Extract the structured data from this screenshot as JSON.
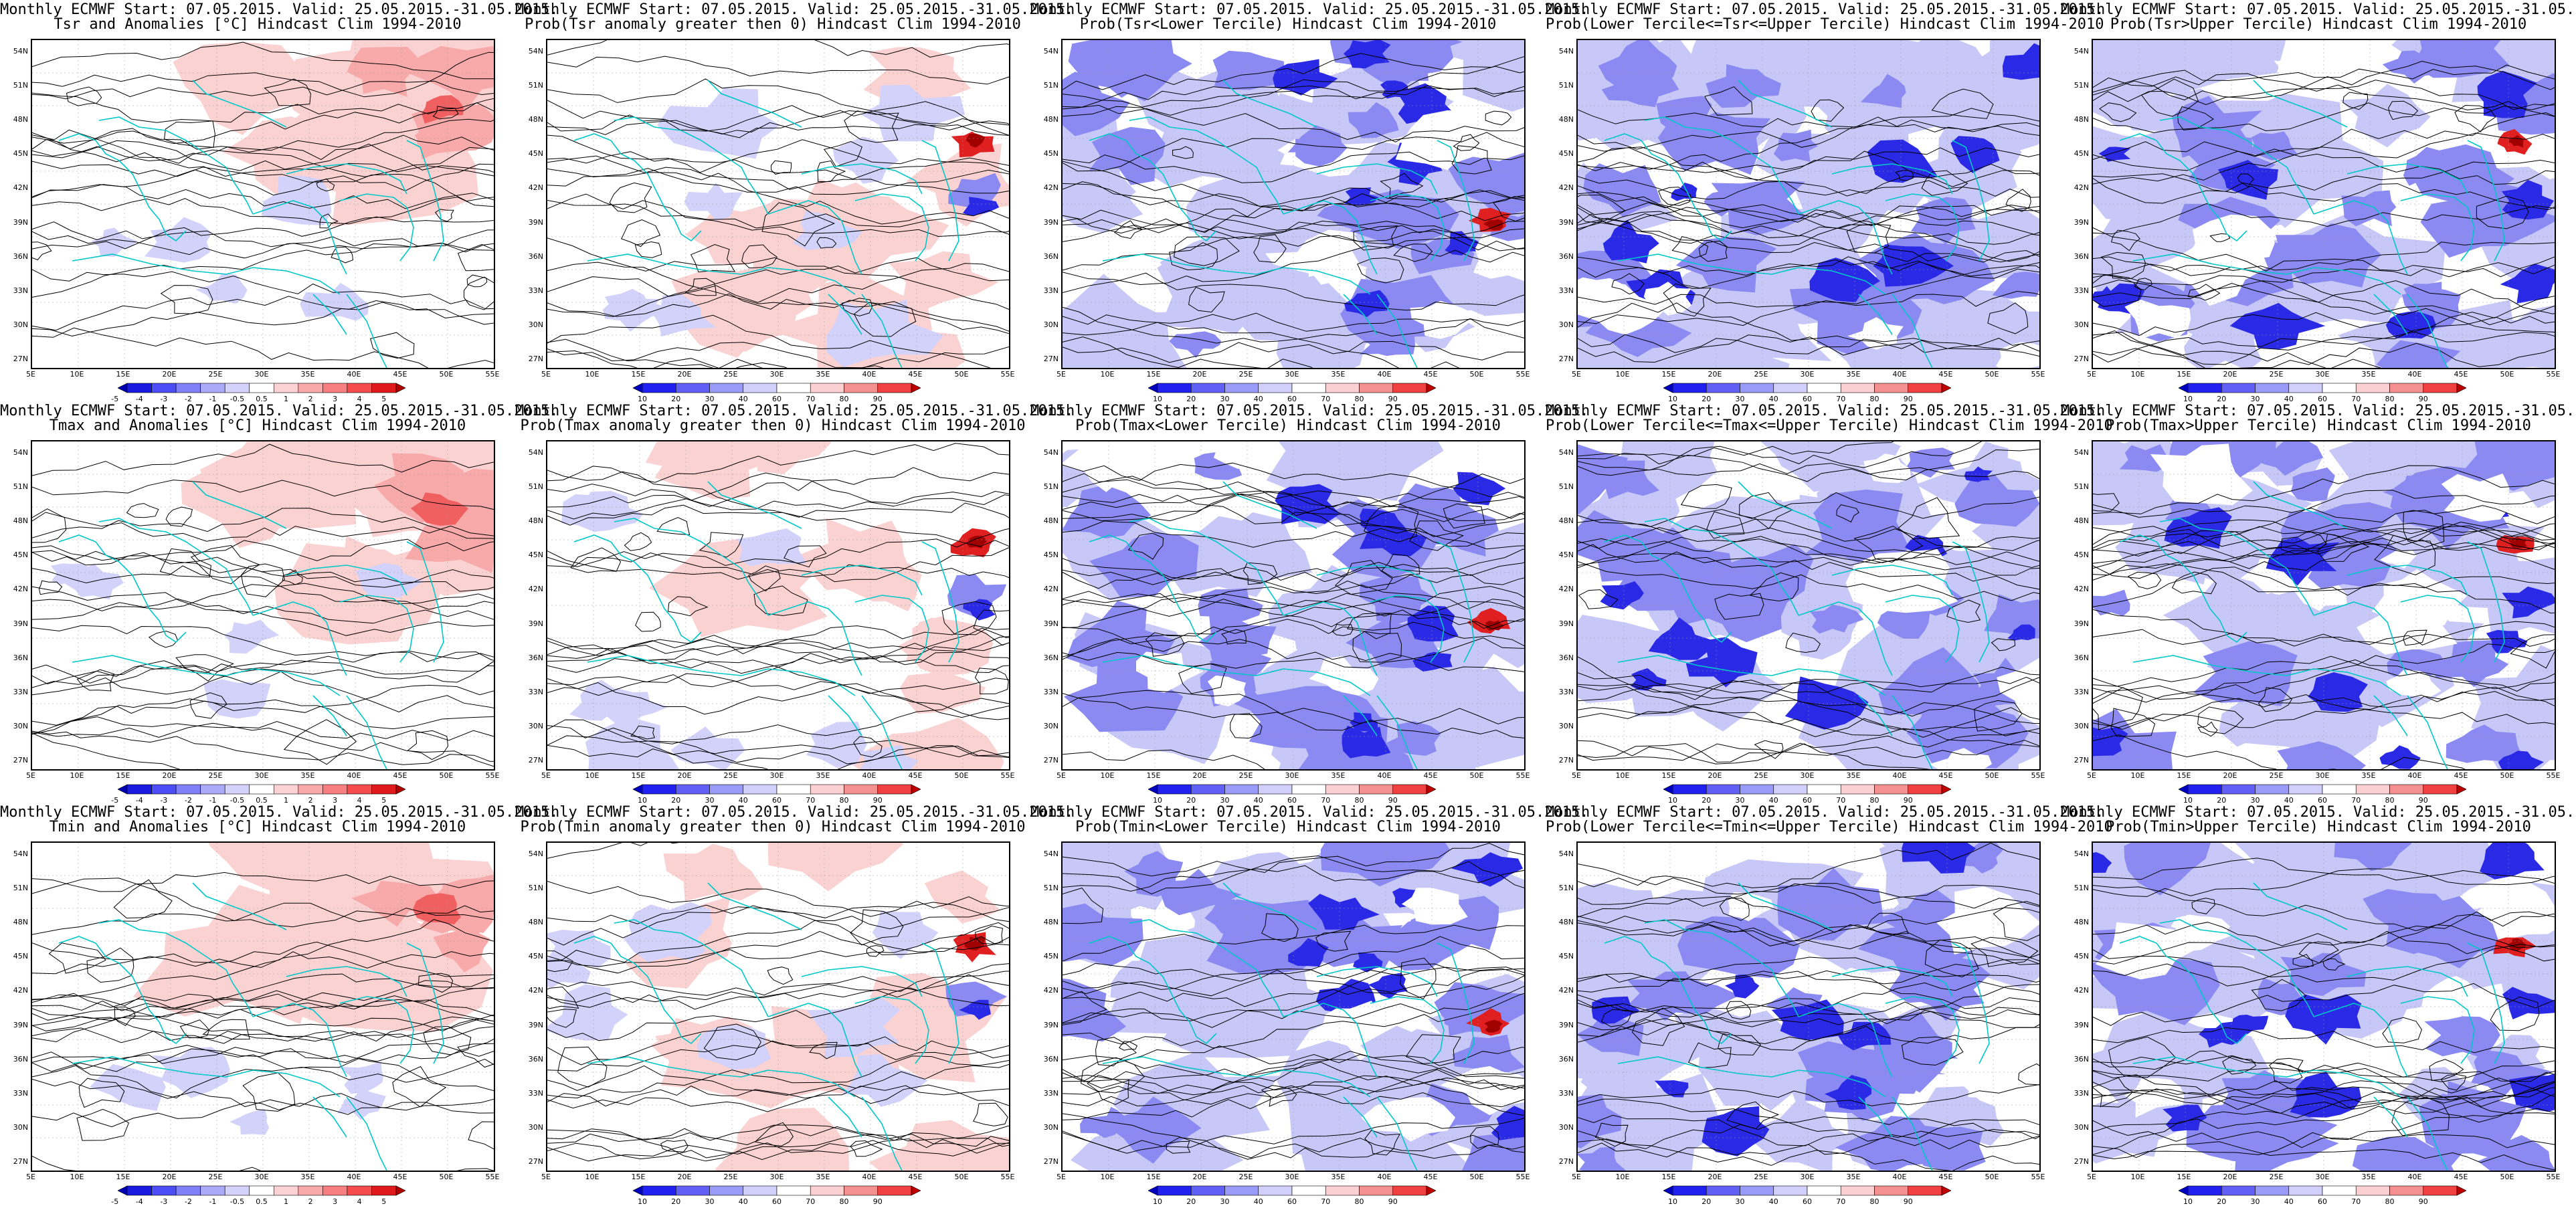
{
  "header_line": "Monthly ECMWF Start: 07.05.2015. Valid: 25.05.2015.-31.05.2015.",
  "panels": [
    {
      "title2": "Tsr and Anomalies [°C] Hindcast Clim 1994-2010",
      "kind": "anom",
      "seed": 11
    },
    {
      "title2": "Prob(Tsr anomaly greater then 0) Hindcast Clim 1994-2010",
      "kind": "probpos",
      "seed": 12
    },
    {
      "title2": "Prob(Tsr<Lower Tercile) Hindcast Clim 1994-2010",
      "kind": "lower",
      "seed": 13
    },
    {
      "title2": "Prob(Lower Tercile<=Tsr<=Upper Tercile) Hindcast Clim 1994-2010",
      "kind": "middle",
      "seed": 14
    },
    {
      "title2": "Prob(Tsr>Upper Tercile) Hindcast Clim 1994-2010",
      "kind": "upper",
      "seed": 15
    },
    {
      "title2": "Tmax and Anomalies [°C] Hindcast Clim 1994-2010",
      "kind": "anom",
      "seed": 21
    },
    {
      "title2": "Prob(Tmax anomaly greater then 0) Hindcast Clim 1994-2010",
      "kind": "probpos",
      "seed": 22
    },
    {
      "title2": "Prob(Tmax<Lower Tercile) Hindcast Clim 1994-2010",
      "kind": "lower",
      "seed": 23
    },
    {
      "title2": "Prob(Lower Tercile<=Tmax<=Upper Tercile) Hindcast Clim 1994-2010",
      "kind": "middle",
      "seed": 24
    },
    {
      "title2": "Prob(Tmax>Upper Tercile) Hindcast Clim 1994-2010",
      "kind": "upper",
      "seed": 25
    },
    {
      "title2": "Tmin and Anomalies [°C] Hindcast Clim 1994-2010",
      "kind": "anom",
      "seed": 31
    },
    {
      "title2": "Prob(Tmin anomaly greater then 0) Hindcast Clim 1994-2010",
      "kind": "probpos",
      "seed": 32
    },
    {
      "title2": "Prob(Tmin<Lower Tercile) Hindcast Clim 1994-2010",
      "kind": "lower",
      "seed": 33
    },
    {
      "title2": "Prob(Lower Tercile<=Tmin<=Upper Tercile) Hindcast Clim 1994-2010",
      "kind": "middle",
      "seed": 34
    },
    {
      "title2": "Prob(Tmin>Upper Tercile) Hindcast Clim 1994-2010",
      "kind": "upper",
      "seed": 35
    }
  ],
  "lat_labels": [
    "54N",
    "51N",
    "48N",
    "45N",
    "42N",
    "39N",
    "36N",
    "33N",
    "30N",
    "27N"
  ],
  "lon_labels": [
    "5E",
    "10E",
    "15E",
    "20E",
    "25E",
    "30E",
    "35E",
    "40E",
    "45E",
    "50E",
    "55E"
  ],
  "anom_colorbar": {
    "labels": [
      "-5",
      "-4",
      "-3",
      "-2",
      "-1",
      "-0.5",
      "0.5",
      "1",
      "2",
      "3",
      "4",
      "5"
    ],
    "colors": [
      "#0000b0",
      "#1a1ae0",
      "#4d4df5",
      "#7f7ff7",
      "#aaaaf8",
      "#d2d2fb",
      "#ffffff",
      "#fbd2d2",
      "#f8aaaa",
      "#f77f7f",
      "#f54d4d",
      "#e01a1a",
      "#b00000"
    ]
  },
  "prob_colorbar": {
    "labels": [
      "10",
      "20",
      "30",
      "40",
      "60",
      "70",
      "80",
      "90"
    ],
    "colors": [
      "#0000c0",
      "#2020f0",
      "#6060f4",
      "#9a9af8",
      "#d0d0fb",
      "#ffffff",
      "#fbd0d0",
      "#f59090",
      "#f04040",
      "#c00000"
    ]
  },
  "map_colors": {
    "coast": "#00c8c8",
    "contour": "#000000",
    "anom_pos_light": "#fbd2d2",
    "anom_pos_mid": "#f8aaaa",
    "anom_pos_strong": "#f06060",
    "anom_neg_light": "#d2d2fb",
    "prob_blue_light": "#c8c8f8",
    "prob_blue_mid": "#8a8af2",
    "prob_blue_strong": "#2a2ae6",
    "prob_red": "#e02020",
    "prob_red_dark": "#a00000"
  }
}
